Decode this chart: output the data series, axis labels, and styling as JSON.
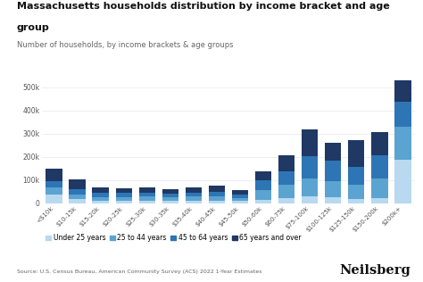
{
  "title_line1": "Massachusetts households distribution by income bracket and age",
  "title_line2": "group",
  "subtitle": "Number of households, by income brackets & age groups",
  "source": "Source: U.S. Census Bureau, American Community Survey (ACS) 2022 1-Year Estimates",
  "categories": [
    "<$10k",
    "$10-15k",
    "$15-20k",
    "$20-25k",
    "$25-30k",
    "$30-35k",
    "$35-40k",
    "$40-45k",
    "$45-50k",
    "$50-60k",
    "$60-75k",
    "$75-100k",
    "$100-125k",
    "$125-150k",
    "$150-200k",
    "$200k+"
  ],
  "series": [
    {
      "name": "Under 25 years",
      "color": "#b8d9f0",
      "values": [
        38000,
        18000,
        10000,
        10000,
        10000,
        10000,
        10000,
        10000,
        8000,
        15000,
        20000,
        30000,
        25000,
        18000,
        22000,
        185000
      ]
    },
    {
      "name": "25 to 44 years",
      "color": "#5ba3d0",
      "values": [
        28000,
        20000,
        17000,
        17000,
        18000,
        16000,
        18000,
        19000,
        15000,
        40000,
        58000,
        75000,
        70000,
        60000,
        85000,
        145000
      ]
    },
    {
      "name": "45 to 64 years",
      "color": "#2e75b6",
      "values": [
        30000,
        22000,
        17000,
        17000,
        17000,
        16000,
        18000,
        20000,
        15000,
        42000,
        60000,
        98000,
        88000,
        78000,
        98000,
        108000
      ]
    },
    {
      "name": "65 years and over",
      "color": "#1f3864",
      "values": [
        52000,
        42000,
        22000,
        20000,
        22000,
        18000,
        22000,
        28000,
        18000,
        40000,
        70000,
        115000,
        78000,
        115000,
        100000,
        90000
      ]
    }
  ],
  "ylim": [
    0,
    560000
  ],
  "yticks": [
    0,
    100000,
    200000,
    300000,
    400000,
    500000
  ],
  "ytick_labels": [
    "0",
    "100k",
    "200k",
    "300k",
    "400k",
    "500k"
  ],
  "background_color": "#ffffff",
  "grid_color": "#e8e8e8",
  "brand": "Neilsberg"
}
